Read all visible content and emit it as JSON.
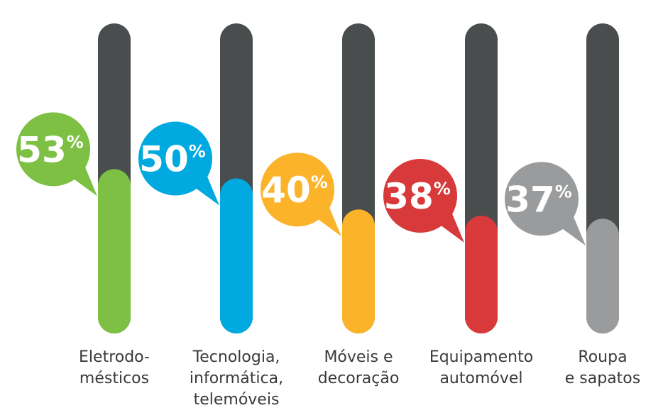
{
  "chart_data": {
    "type": "bar",
    "categories": [
      [
        "Eletrodo-",
        "mésticos"
      ],
      [
        "Tecnologia,",
        "informática,",
        "telemóveis"
      ],
      [
        "Móveis e",
        "decoração"
      ],
      [
        "Equipamento",
        "automóvel"
      ],
      [
        "Roupa",
        "e sapatos"
      ]
    ],
    "values": [
      53,
      50,
      40,
      38,
      37
    ],
    "value_labels": [
      "53%",
      "50%",
      "40%",
      "38%",
      "37%"
    ],
    "colors": [
      "#7dc043",
      "#00a9e0",
      "#fbb42a",
      "#d8393a",
      "#999b9c"
    ],
    "track_color": "#4a4d4e",
    "ylim": [
      0,
      100
    ]
  }
}
